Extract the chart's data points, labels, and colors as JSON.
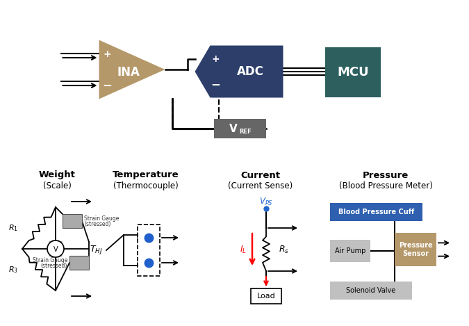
{
  "bg_color": "#ffffff",
  "ina_color": "#b5986a",
  "adc_color": "#2d3e6b",
  "mcu_color": "#2d5f5f",
  "vref_color": "#666666",
  "blue_box_color": "#2f5faf",
  "tan_box_color": "#b5986a",
  "gray_box_color": "#c0c0c0",
  "section_titles": [
    "Weight",
    "Temperature",
    "Current",
    "Pressure"
  ],
  "section_subtitles": [
    "(Scale)",
    "(Thermocouple)",
    "(Current Sense)",
    "(Blood Pressure Meter)"
  ],
  "ina_label": "INA",
  "adc_label": "ADC",
  "mcu_label": "MCU",
  "vref_label": "V",
  "vref_sub": "REF"
}
